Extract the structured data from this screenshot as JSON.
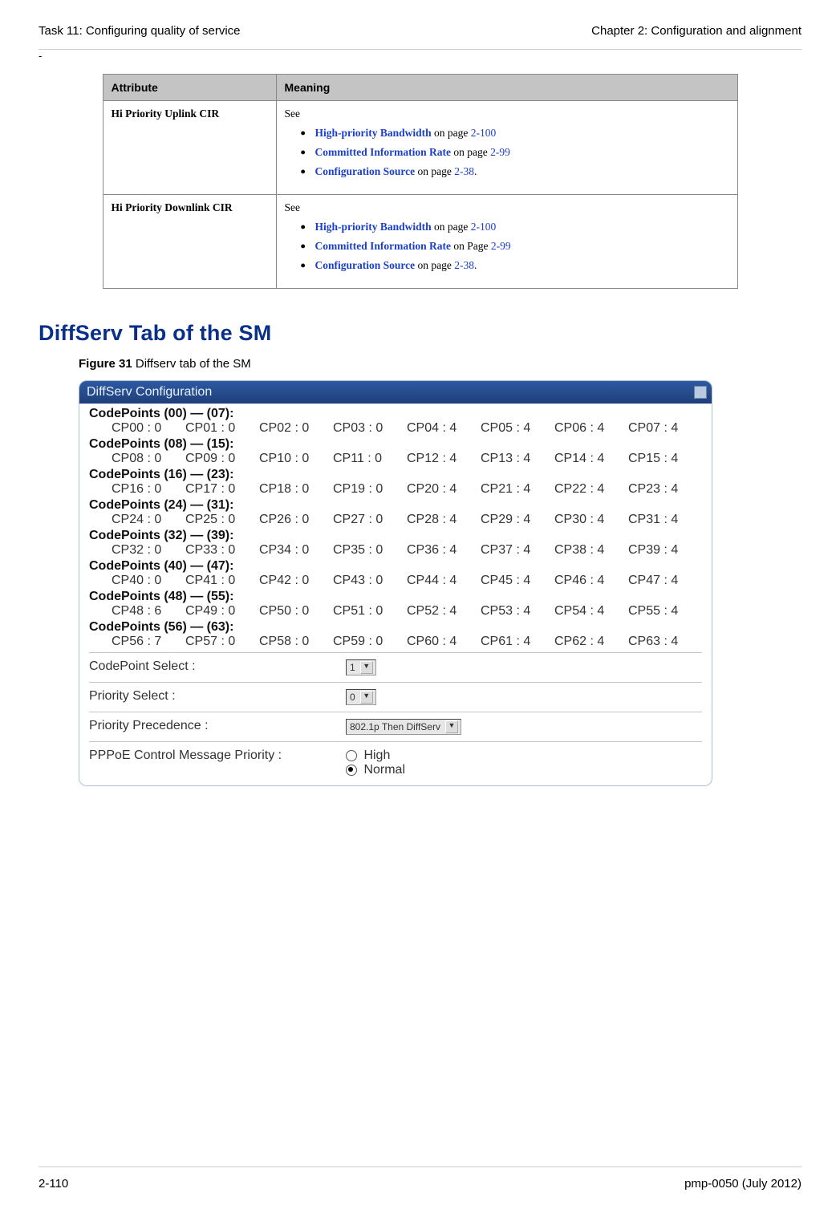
{
  "header": {
    "left": "Task 11: Configuring quality of service",
    "right": "Chapter 2:  Configuration and alignment"
  },
  "dash": "-",
  "table": {
    "headers": [
      "Attribute",
      "Meaning"
    ],
    "rows": [
      {
        "attr": "Hi Priority Uplink CIR",
        "see": "See",
        "items": [
          {
            "link": "High-priority Bandwidth",
            "mid": " on page ",
            "page": "2-100",
            "end": ""
          },
          {
            "link": "Committed Information Rate",
            "mid": " on page ",
            "page": "2-99",
            "end": ""
          },
          {
            "link": "Configuration Source",
            "mid": " on page ",
            "page": "2-38",
            "end": "."
          }
        ]
      },
      {
        "attr": "Hi Priority Downlink CIR",
        "see": "See",
        "items": [
          {
            "link": "High-priority Bandwidth",
            "mid": " on page ",
            "page": "2-100",
            "end": ""
          },
          {
            "link": "Committed Information Rate",
            "mid": " on Page ",
            "page": "2-99",
            "end": ""
          },
          {
            "link": "Configuration Source",
            "mid": " on page ",
            "page": "2-38",
            "end": "."
          }
        ]
      }
    ]
  },
  "h2": "DiffServ Tab of the SM",
  "figure": {
    "label": "Figure 31",
    "caption": "  Diffserv tab of the SM"
  },
  "panel": {
    "title": "DiffServ Configuration",
    "groups": [
      {
        "title": "CodePoints (00) — (07):",
        "cells": [
          "CP00 : 0",
          "CP01 : 0",
          "CP02 : 0",
          "CP03 : 0",
          "CP04 : 4",
          "CP05 : 4",
          "CP06 : 4",
          "CP07 : 4"
        ]
      },
      {
        "title": "CodePoints (08) — (15):",
        "cells": [
          "CP08 : 0",
          "CP09 : 0",
          "CP10 : 0",
          "CP11 : 0",
          "CP12 : 4",
          "CP13 : 4",
          "CP14 : 4",
          "CP15 : 4"
        ]
      },
      {
        "title": "CodePoints (16) — (23):",
        "cells": [
          "CP16 : 0",
          "CP17 : 0",
          "CP18 : 0",
          "CP19 : 0",
          "CP20 : 4",
          "CP21 : 4",
          "CP22 : 4",
          "CP23 : 4"
        ]
      },
      {
        "title": "CodePoints (24) — (31):",
        "cells": [
          "CP24 : 0",
          "CP25 : 0",
          "CP26 : 0",
          "CP27 : 0",
          "CP28 : 4",
          "CP29 : 4",
          "CP30 : 4",
          "CP31 : 4"
        ]
      },
      {
        "title": "CodePoints (32) — (39):",
        "cells": [
          "CP32 : 0",
          "CP33 : 0",
          "CP34 : 0",
          "CP35 : 0",
          "CP36 : 4",
          "CP37 : 4",
          "CP38 : 4",
          "CP39 : 4"
        ]
      },
      {
        "title": "CodePoints (40) — (47):",
        "cells": [
          "CP40 : 0",
          "CP41 : 0",
          "CP42 : 0",
          "CP43 : 0",
          "CP44 : 4",
          "CP45 : 4",
          "CP46 : 4",
          "CP47 : 4"
        ]
      },
      {
        "title": "CodePoints (48) — (55):",
        "cells": [
          "CP48 : 6",
          "CP49 : 0",
          "CP50 : 0",
          "CP51 : 0",
          "CP52 : 4",
          "CP53 : 4",
          "CP54 : 4",
          "CP55 : 4"
        ]
      },
      {
        "title": "CodePoints (56) — (63):",
        "cells": [
          "CP56 : 7",
          "CP57 : 0",
          "CP58 : 0",
          "CP59 : 0",
          "CP60 : 4",
          "CP61 : 4",
          "CP62 : 4",
          "CP63 : 4"
        ]
      }
    ],
    "controls": {
      "codepoint_select": {
        "label": "CodePoint Select :",
        "value": "1"
      },
      "priority_select": {
        "label": "Priority Select :",
        "value": "0"
      },
      "priority_precedence": {
        "label": "Priority Precedence :",
        "value": "802.1p Then DiffServ"
      },
      "pppoe": {
        "label": "PPPoE Control Message Priority :",
        "options": [
          {
            "label": "High",
            "selected": false
          },
          {
            "label": "Normal",
            "selected": true
          }
        ]
      }
    }
  },
  "footer": {
    "left": "2-110",
    "right": "pmp-0050 (July 2012)"
  }
}
